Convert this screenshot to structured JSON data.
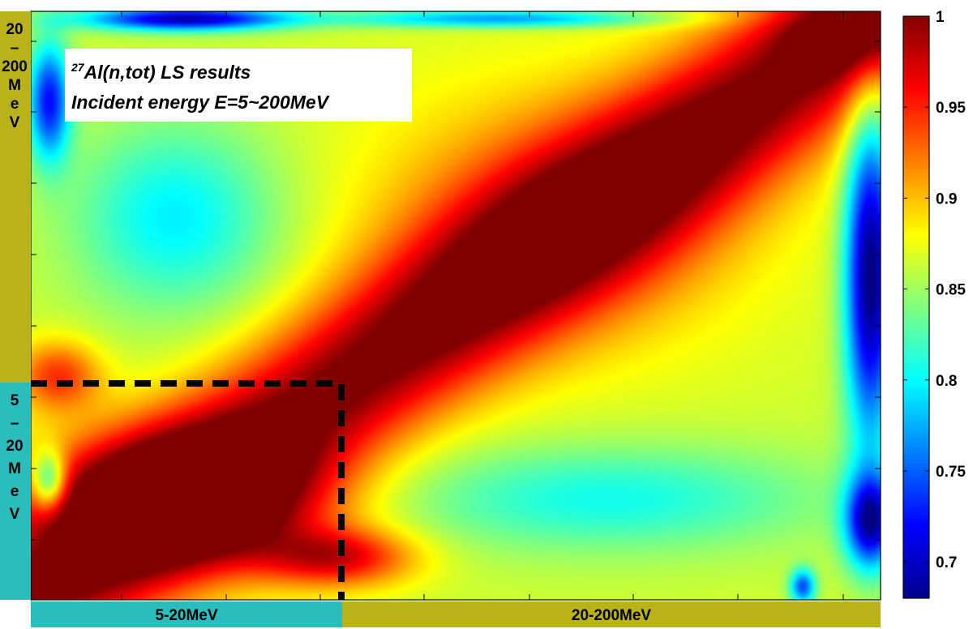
{
  "chart_data": {
    "type": "heatmap",
    "title": {
      "superscript": "27",
      "line1": "Al(n,tot)  LS results",
      "line2": "Incident energy E=5~200MeV"
    },
    "colorbar": {
      "min": 0.68,
      "max": 1.0,
      "colormap": "jet",
      "ticks": [
        "1",
        "0.95",
        "0.9",
        "0.85",
        "0.8",
        "0.75",
        "0.7"
      ],
      "tick_values": [
        1.0,
        0.95,
        0.9,
        0.85,
        0.8,
        0.75,
        0.7
      ]
    },
    "x_groups": [
      {
        "label": "5-20MeV",
        "color": "#2bbcbc"
      },
      {
        "label": "20-200MeV",
        "color": "#b9b21a"
      }
    ],
    "y_groups": [
      {
        "label": "20-200MeV",
        "color": "#b9b21a",
        "letters": [
          "20",
          "–",
          "200",
          "M",
          "e",
          "V"
        ]
      },
      {
        "label": "5-20MeV",
        "color": "#2bbcbc",
        "letters": [
          "5",
          "–",
          "20",
          "M",
          "e",
          "V"
        ]
      }
    ],
    "grid": false
  }
}
